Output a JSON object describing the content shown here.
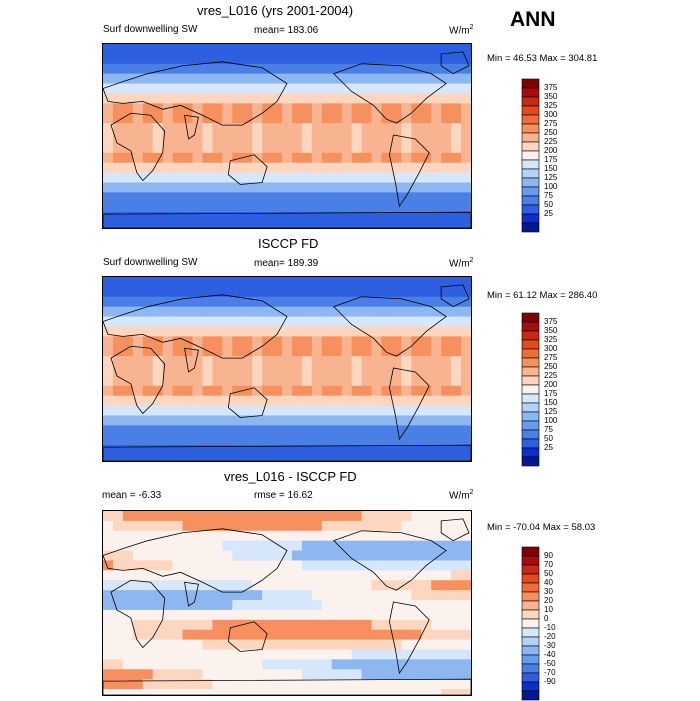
{
  "season": "ANN",
  "panels": [
    {
      "title": "vres_L016 (yrs 2001-2004)",
      "left_label": "Surf downwelling SW",
      "center_label": "mean= 183.06",
      "units_base": "W/m",
      "units_exp": "2",
      "minmax": "Min = 46.53 Max = 304.81",
      "levels": [
        "375",
        "350",
        "325",
        "300",
        "275",
        "250",
        "225",
        "200",
        "175",
        "150",
        "125",
        "100",
        "75",
        "50",
        "25"
      ],
      "colors": [
        "#7f0000",
        "#a80d0d",
        "#c62a14",
        "#e34a1e",
        "#f06c3c",
        "#f6915f",
        "#f8b490",
        "#fcd6bf",
        "#fbf2ee",
        "#d6e7fb",
        "#b3d2f7",
        "#8db7f1",
        "#679beb",
        "#4a80e6",
        "#2d5fe0",
        "#0b2fc8",
        "#061790"
      ],
      "chart_data": {
        "type": "heatmap",
        "title": "vres_L016 (yrs 2001-2004)",
        "variable": "Surf downwelling SW",
        "units": "W/m2",
        "mean": 183.06,
        "min": 46.53,
        "max": 304.81,
        "contour_levels": [
          25,
          50,
          75,
          100,
          125,
          150,
          175,
          200,
          225,
          250,
          275,
          300,
          325,
          350,
          375
        ]
      }
    },
    {
      "title": "ISCCP FD",
      "left_label": "Surf downwelling SW",
      "center_label": "mean= 189.39",
      "units_base": "W/m",
      "units_exp": "2",
      "minmax": "Min = 61.12 Max = 286.40",
      "levels": [
        "375",
        "350",
        "325",
        "300",
        "275",
        "250",
        "225",
        "200",
        "175",
        "150",
        "125",
        "100",
        "75",
        "50",
        "25"
      ],
      "colors": [
        "#7f0000",
        "#a80d0d",
        "#c62a14",
        "#e34a1e",
        "#f06c3c",
        "#f6915f",
        "#f8b490",
        "#fcd6bf",
        "#fbf2ee",
        "#d6e7fb",
        "#b3d2f7",
        "#8db7f1",
        "#679beb",
        "#4a80e6",
        "#2d5fe0",
        "#0b2fc8",
        "#061790"
      ],
      "chart_data": {
        "type": "heatmap",
        "title": "ISCCP FD",
        "variable": "Surf downwelling SW",
        "units": "W/m2",
        "mean": 189.39,
        "min": 61.12,
        "max": 286.4,
        "contour_levels": [
          25,
          50,
          75,
          100,
          125,
          150,
          175,
          200,
          225,
          250,
          275,
          300,
          325,
          350,
          375
        ]
      }
    },
    {
      "title": "vres_L016 - ISCCP FD",
      "left_label": "mean =  -6.33",
      "center_label": "rmse =  16.62",
      "units_base": "W/m",
      "units_exp": "2",
      "minmax": "Min = -70.04 Max =  58.03",
      "levels": [
        "90",
        "70",
        "50",
        "40",
        "30",
        "20",
        "10",
        "0",
        "-10",
        "-20",
        "-30",
        "-40",
        "-50",
        "-70",
        "-90"
      ],
      "colors": [
        "#7f0000",
        "#a80d0d",
        "#c62a14",
        "#e34a1e",
        "#f06c3c",
        "#f6915f",
        "#f8b490",
        "#fcd6bf",
        "#fbf2ee",
        "#d6e7fb",
        "#b3d2f7",
        "#8db7f1",
        "#679beb",
        "#4a80e6",
        "#2d5fe0",
        "#0b2fc8",
        "#061790"
      ],
      "chart_data": {
        "type": "heatmap",
        "title": "vres_L016 - ISCCP FD",
        "units": "W/m2",
        "mean": -6.33,
        "rmse": 16.62,
        "min": -70.04,
        "max": 58.03,
        "contour_levels": [
          -90,
          -70,
          -50,
          -40,
          -30,
          -20,
          -10,
          0,
          10,
          20,
          30,
          40,
          50,
          70,
          90
        ]
      }
    }
  ]
}
